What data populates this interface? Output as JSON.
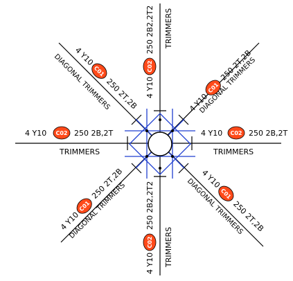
{
  "colors": {
    "line": "#000000",
    "trimmer": "#1f3fd0",
    "tag_fill": "#ff4a1a",
    "background": "#ffffff"
  },
  "horizontal": {
    "left_bar": "4 Y10",
    "left_tag": "C02",
    "left_spec": "250  2B,2T",
    "left_title": "TRIMMERS",
    "right_bar": "4 Y10",
    "right_tag": "C02",
    "right_spec": "250  2B,2T",
    "right_title": "TRIMMERS"
  },
  "vertical": {
    "top_bar": "4 Y10",
    "top_tag": "C02",
    "top_spec": "250  2B2,2T2",
    "top_title": "TRIMMERS",
    "bottom_bar": "4 Y10",
    "bottom_tag": "C02",
    "bottom_spec": "250  2B2,2T2",
    "bottom_title": "TRIMMERS"
  },
  "diagonals": {
    "nw_bar": "4 Y10",
    "nw_tag": "C01",
    "nw_spec": "250  2T,2B",
    "nw_title": "DIAGONAL  TRIMMERS",
    "ne_bar": "4 Y10",
    "ne_tag": "C01",
    "ne_spec": "250  2T,2B",
    "ne_title": "DIAGONAL  TRIMMERS",
    "sw_bar": "4 Y10",
    "sw_tag": "C01",
    "sw_spec": "250  2T,2B",
    "sw_title": "DIAGONAL  TRIMMERS",
    "se_bar": "4 Y10",
    "se_tag": "C01",
    "se_spec": "250  2T,2B",
    "se_title": "DIAGONAL  TRIMMERS"
  }
}
